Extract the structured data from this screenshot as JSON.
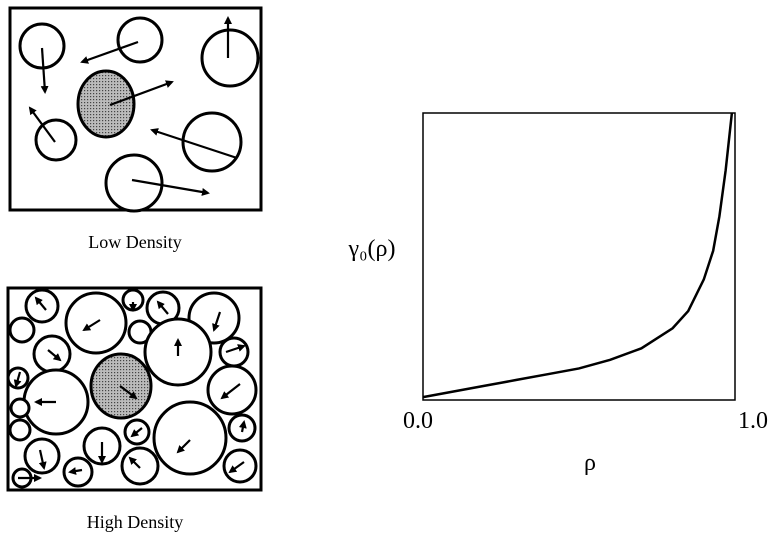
{
  "panels": {
    "low": {
      "label": "Low Density"
    },
    "high": {
      "label": "High Density"
    }
  },
  "chart_data": {
    "type": "line",
    "xlabel": "ρ",
    "ylabel": "γ₀(ρ)",
    "x": [
      0,
      0.1,
      0.2,
      0.3,
      0.4,
      0.5,
      0.6,
      0.7,
      0.8,
      0.85,
      0.9,
      0.93,
      0.95,
      0.97,
      0.99
    ],
    "values": [
      0.05,
      0.15,
      0.25,
      0.35,
      0.45,
      0.55,
      0.7,
      0.9,
      1.25,
      1.55,
      2.1,
      2.6,
      3.2,
      4.0,
      5.0
    ],
    "color": "#000000",
    "xlim": [
      0,
      1
    ],
    "ylim": [
      0,
      5
    ],
    "xticks": [
      {
        "value": 0,
        "label": "0.0"
      },
      {
        "value": 1,
        "label": "1.0"
      }
    ]
  }
}
